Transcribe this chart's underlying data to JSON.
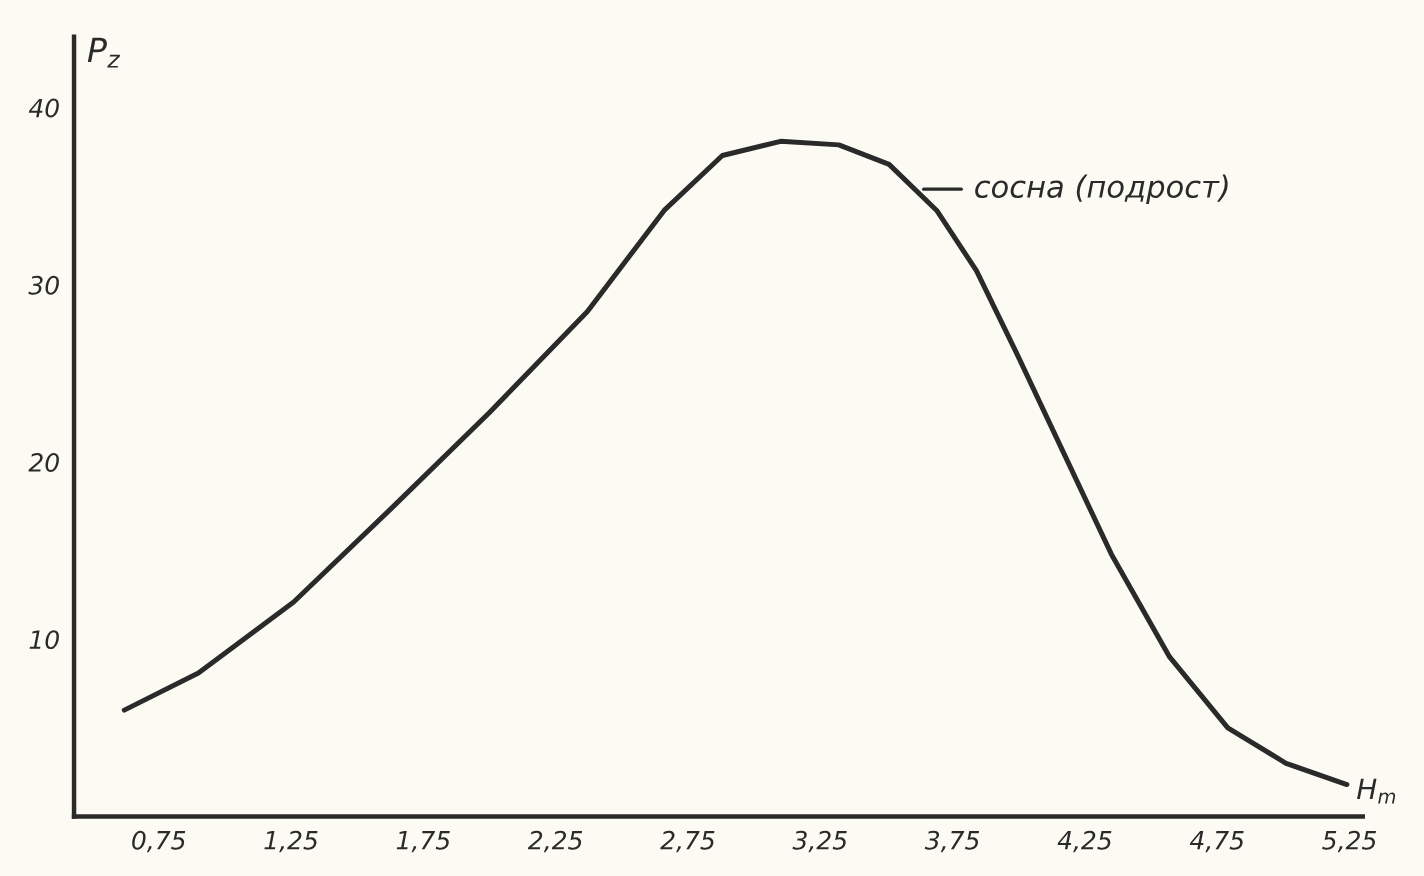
{
  "chart_data": {
    "type": "line",
    "xlabel": "H$_{m}$",
    "ylabel": "P$_{z}$",
    "x": [
      0.62,
      0.9,
      1.26,
      1.63,
      2.0,
      2.37,
      2.66,
      2.88,
      3.1,
      3.32,
      3.51,
      3.69,
      3.84,
      3.99,
      4.17,
      4.35,
      4.57,
      4.79,
      5.01,
      5.24
    ],
    "series": [
      {
        "color": "#2a2a2a",
        "values": [
          6.0,
          8.1,
          12.1,
          17.4,
          22.8,
          28.5,
          34.2,
          37.3,
          38.1,
          37.9,
          36.8,
          34.2,
          30.8,
          26.2,
          20.5,
          14.8,
          9.0,
          5.0,
          3.0,
          1.8
        ]
      }
    ],
    "annotations": [
      {
        "text": "сосна (подрост)",
        "x": 3.62,
        "y": 35.4
      }
    ],
    "xlim": [
      0.43,
      5.3
    ],
    "ylim": [
      0,
      44
    ],
    "xticks": [
      {
        "value": 0.75,
        "label": "0,75"
      },
      {
        "value": 1.25,
        "label": "1,25"
      },
      {
        "value": 1.75,
        "label": "1,75"
      },
      {
        "value": 2.25,
        "label": "2,25"
      },
      {
        "value": 2.75,
        "label": "2,75"
      },
      {
        "value": 3.25,
        "label": "3,25"
      },
      {
        "value": 3.75,
        "label": "3,75"
      },
      {
        "value": 4.25,
        "label": "4,25"
      },
      {
        "value": 4.75,
        "label": "4,75"
      },
      {
        "value": 5.25,
        "label": "5,25"
      }
    ],
    "yticks": [
      10,
      20,
      30,
      40
    ],
    "grid": false,
    "marker": "none",
    "line_style": "solid"
  }
}
